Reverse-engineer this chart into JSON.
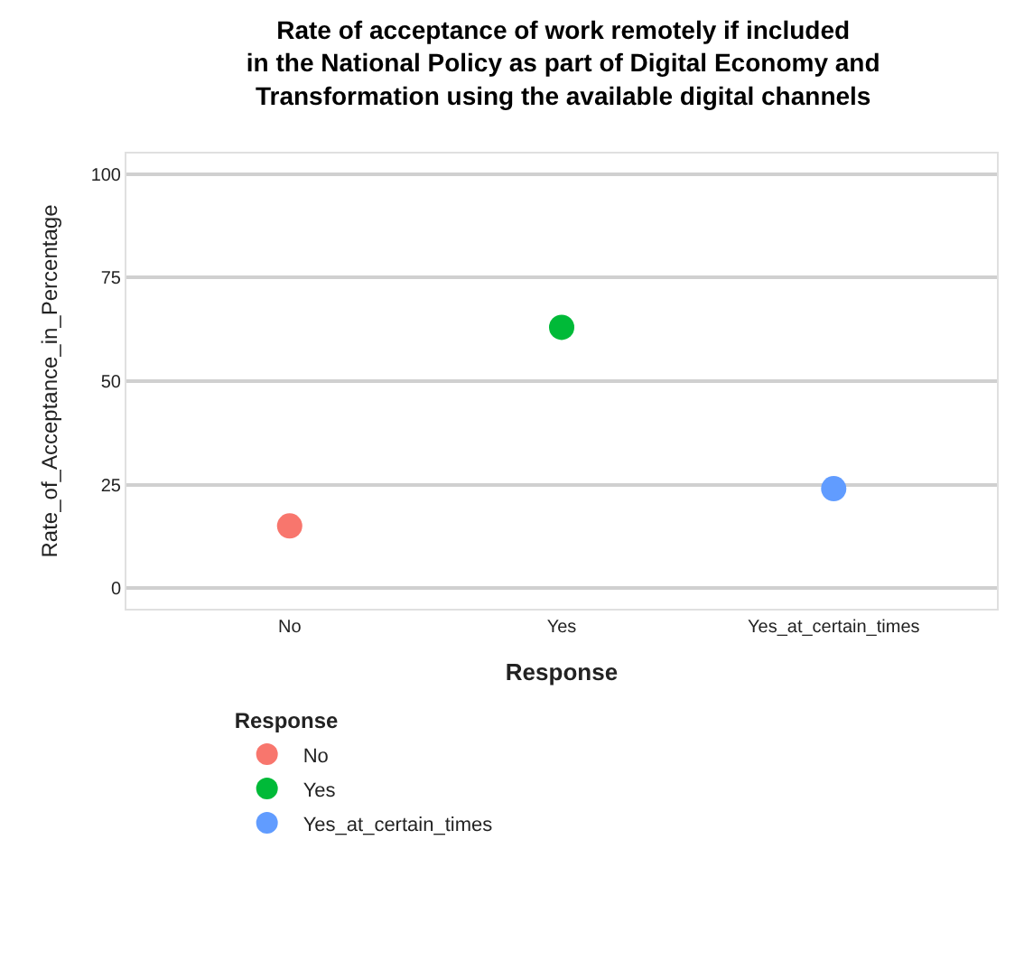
{
  "chart_data": {
    "type": "scatter",
    "title": "Rate of acceptance of work remotely if included\nin the National Policy as part of Digital Economy and\nTransformation using the available digital channels",
    "xlabel": "Response",
    "ylabel": "Rate_of_Acceptance_in_Percentage",
    "legend_title": "Response",
    "categories": [
      "No",
      "Yes",
      "Yes_at_certain_times"
    ],
    "series": [
      {
        "name": "No",
        "color": "#f8766d",
        "x": [
          "No"
        ],
        "values": [
          15
        ]
      },
      {
        "name": "Yes",
        "color": "#00ba38",
        "x": [
          "Yes"
        ],
        "values": [
          63
        ]
      },
      {
        "name": "Yes_at_certain_times",
        "color": "#619cff",
        "x": [
          "Yes_at_certain_times"
        ],
        "values": [
          24
        ]
      }
    ],
    "ylim": [
      -5,
      105
    ],
    "yticks": [
      0,
      25,
      50,
      75,
      100
    ],
    "grid": "y",
    "legend": "bottom",
    "marker": "circle"
  }
}
